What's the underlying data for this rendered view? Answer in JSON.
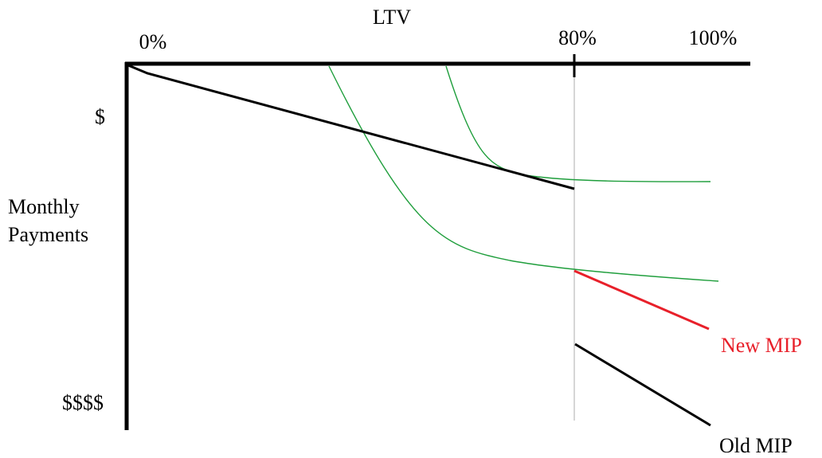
{
  "diagram": {
    "axis_title_x": "LTV",
    "x_ticks": [
      "0%",
      "80%",
      "100%"
    ],
    "y_axis_title_lines": [
      "Monthly",
      "Payments"
    ],
    "y_ticks": [
      "$",
      "$$$$"
    ],
    "curve_labels": {
      "new_mip": "New MIP",
      "old_mip": "Old MIP"
    },
    "colors": {
      "axis": "#000000",
      "guide": "#c8c8c8",
      "green_curve": "#1f9e3c",
      "new_mip": "#e8202a",
      "old_mip": "#000000"
    }
  }
}
